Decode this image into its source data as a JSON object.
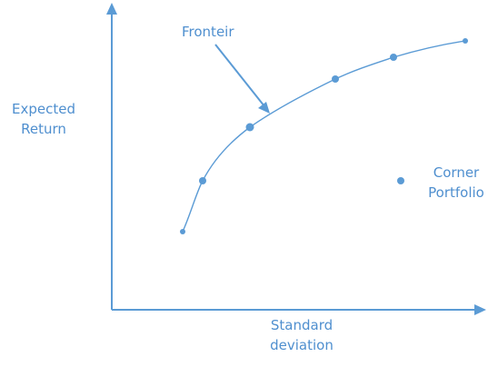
{
  "labels": {
    "frontier": "Fronteir",
    "expected_return": [
      "Expected",
      "Return"
    ],
    "standard_deviation": [
      "Standard",
      "deviation"
    ],
    "corner_portfolio": [
      "Corner",
      "Portfolio"
    ]
  },
  "colors": {
    "line": "#5b9bd5",
    "text": "#4f8fcf"
  }
}
